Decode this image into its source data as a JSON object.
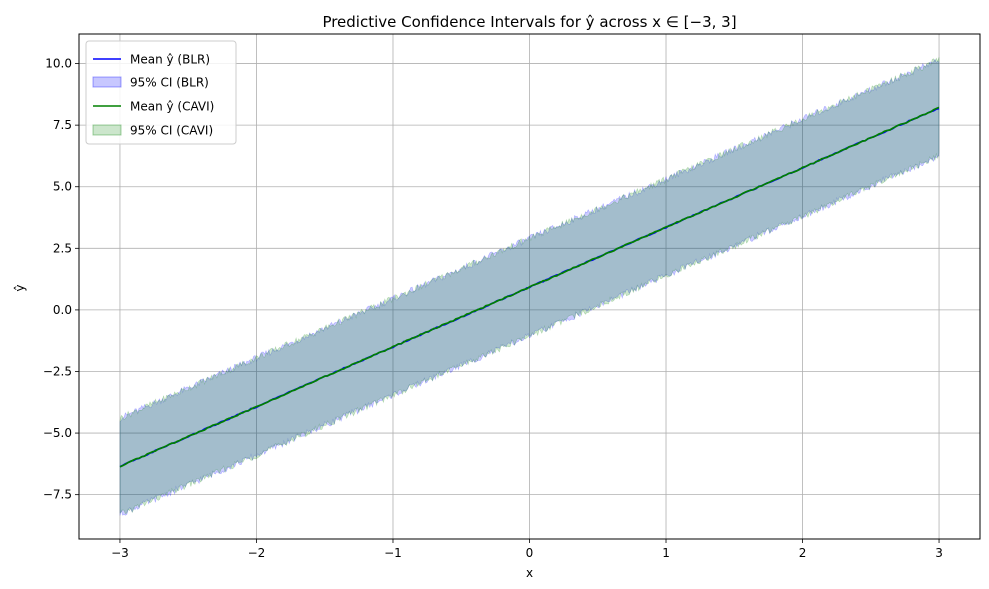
{
  "chart_data": {
    "type": "line",
    "title": "Predictive Confidence Intervals for ŷ across x ∈ [−3, 3]",
    "xlabel": "x",
    "ylabel": "ŷ",
    "xlim": [
      -3.3,
      3.3
    ],
    "ylim": [
      -9.3,
      11.2
    ],
    "xticks": [
      -3,
      -2,
      -1,
      0,
      1,
      2,
      3
    ],
    "xtick_labels": [
      "−3",
      "−2",
      "−1",
      "0",
      "1",
      "2",
      "3"
    ],
    "yticks": [
      -7.5,
      -5.0,
      -2.5,
      0.0,
      2.5,
      5.0,
      7.5,
      10.0
    ],
    "ytick_labels": [
      "−7.5",
      "−5.0",
      "−2.5",
      "0.0",
      "2.5",
      "5.0",
      "7.5",
      "10.0"
    ],
    "grid": true,
    "legend_position": "top-left",
    "x": [
      -3,
      -2,
      -1,
      0,
      1,
      2,
      3
    ],
    "series": [
      {
        "name": "Mean ŷ (BLR)",
        "kind": "line",
        "color": "#0000ff",
        "values": [
          -6.35,
          -3.93,
          -1.5,
          0.92,
          3.35,
          5.77,
          8.2
        ]
      },
      {
        "name": "95% CI (BLR)",
        "kind": "band",
        "color": "#0000ff",
        "lower": [
          -8.3,
          -5.9,
          -3.45,
          -1.05,
          1.4,
          3.8,
          6.25
        ],
        "upper": [
          -4.4,
          -1.95,
          0.45,
          2.9,
          5.3,
          7.75,
          10.15
        ]
      },
      {
        "name": "Mean ŷ (CAVI)",
        "kind": "line",
        "color": "#008000",
        "values": [
          -6.35,
          -3.93,
          -1.5,
          0.92,
          3.35,
          5.77,
          8.2
        ]
      },
      {
        "name": "95% CI (CAVI)",
        "kind": "band",
        "color": "#008000",
        "lower": [
          -8.3,
          -5.9,
          -3.45,
          -1.05,
          1.4,
          3.8,
          6.25
        ],
        "upper": [
          -4.4,
          -1.95,
          0.45,
          2.9,
          5.3,
          7.75,
          10.15
        ]
      }
    ]
  }
}
